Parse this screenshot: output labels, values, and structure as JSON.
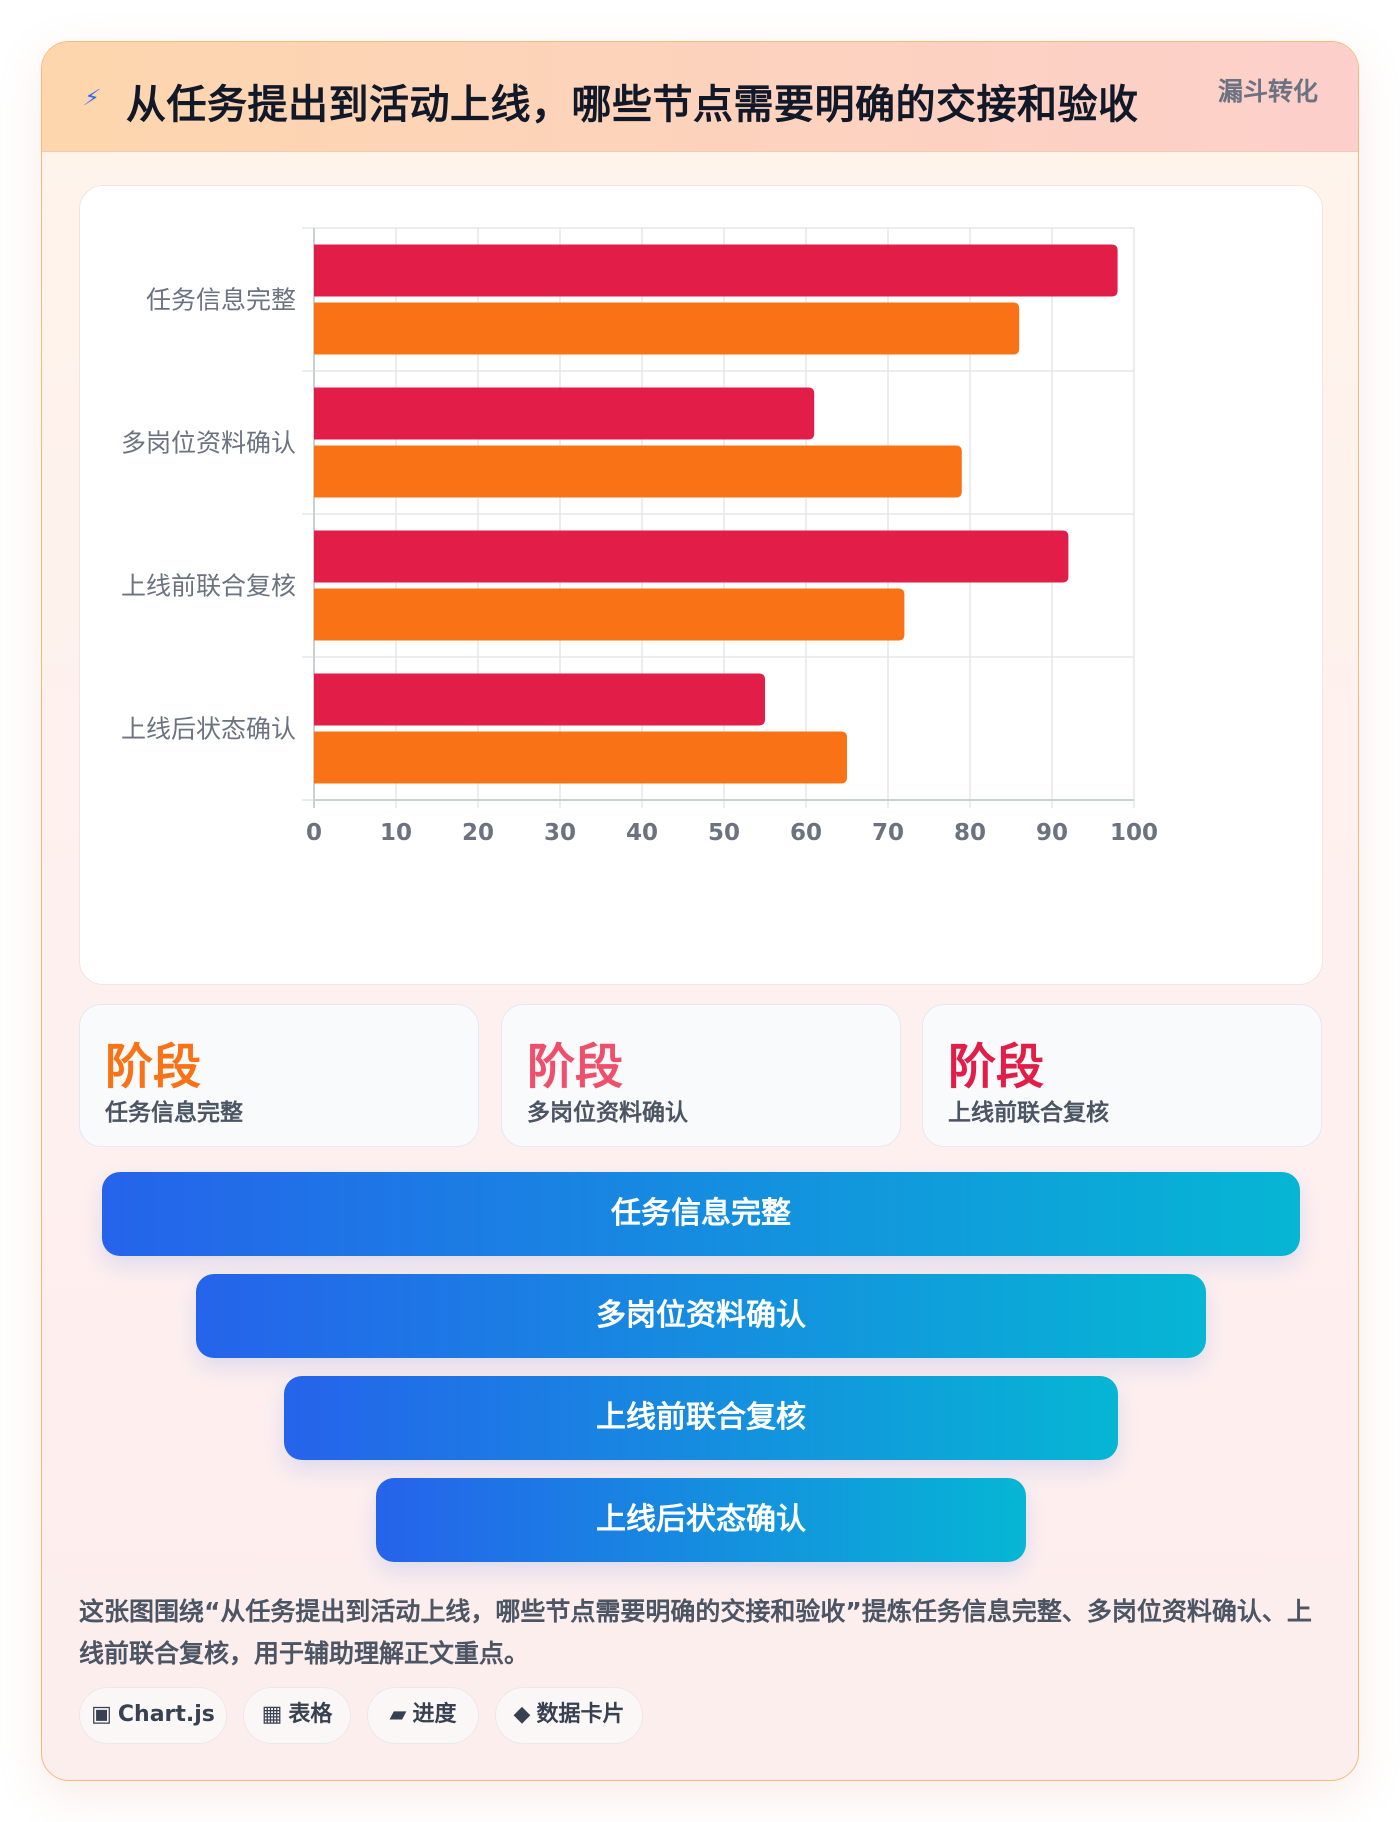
{
  "header": {
    "icon": "lightning-icon",
    "title": "从任务提出到活动上线，哪些节点需要明确的交接和验收",
    "tag": "漏斗转化"
  },
  "chart_data": {
    "type": "bar",
    "orientation": "horizontal",
    "categories": [
      "任务信息完整",
      "多岗位资料确认",
      "上线前联合复核",
      "上线后状态确认"
    ],
    "series": [
      {
        "color": "#e11d48",
        "values": [
          98,
          61,
          92,
          55
        ]
      },
      {
        "color": "#f97316",
        "values": [
          86,
          79,
          72,
          65
        ]
      }
    ],
    "xlim": [
      0,
      100
    ],
    "xticks": [
      "0",
      "10",
      "20",
      "30",
      "40",
      "50",
      "60",
      "70",
      "80",
      "90",
      "100"
    ],
    "grid": true
  },
  "stats": [
    {
      "value": "阶段",
      "label": "任务信息完整",
      "color": "#f97316"
    },
    {
      "value": "阶段",
      "label": "多岗位资料确认",
      "color": "#ef4f6b"
    },
    {
      "value": "阶段",
      "label": "上线前联合复核",
      "color": "#e11d48"
    }
  ],
  "funnel": [
    {
      "label": "任务信息完整"
    },
    {
      "label": "多岗位资料确认"
    },
    {
      "label": "上线前联合复核"
    },
    {
      "label": "上线后状态确认"
    }
  ],
  "description": "这张图围绕“从任务提出到活动上线，哪些节点需要明确的交接和验收”提炼任务信息完整、多岗位资料确认、上线前联合复核，用于辅助理解正文重点。",
  "chips": [
    {
      "icon": "▣",
      "icon_name": "chart-icon",
      "label": "Chart.js"
    },
    {
      "icon": "▦",
      "icon_name": "table-icon",
      "label": "表格"
    },
    {
      "icon": "▰",
      "icon_name": "progress-icon",
      "label": "进度"
    },
    {
      "icon": "◆",
      "icon_name": "data-card-icon",
      "label": "数据卡片"
    }
  ]
}
